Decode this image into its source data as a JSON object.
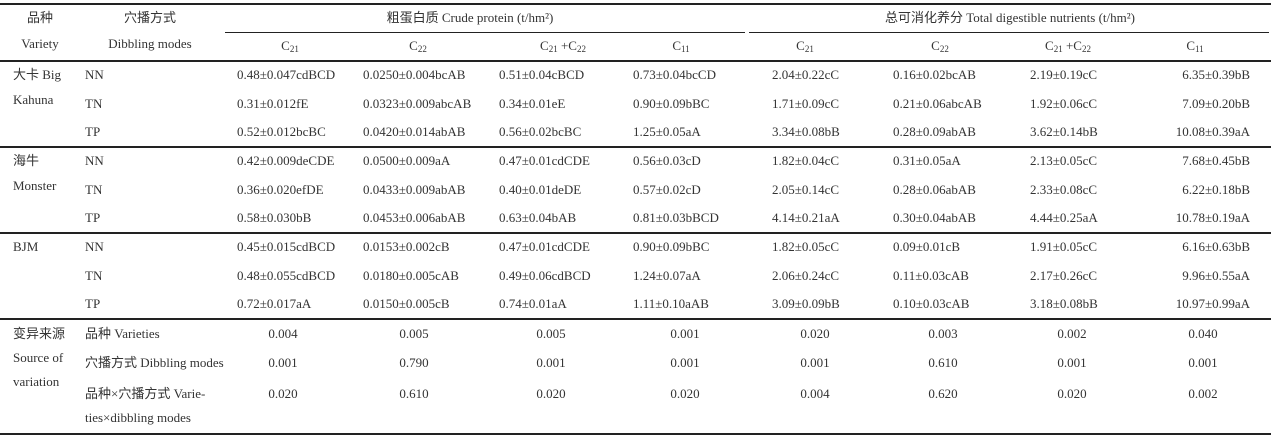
{
  "header": {
    "variety_cn": "品种",
    "variety_en": "Variety",
    "mode_cn": "穴播方式",
    "mode_en": "Dibbling modes",
    "crude_protein": "粗蛋白质 Crude protein (t/hm²)",
    "tdn": "总可消化养分 Total digestible nutrients (t/hm²)",
    "columns": [
      "C21",
      "C22",
      "C21+C22",
      "C11"
    ]
  },
  "groups": [
    {
      "variety": [
        "大卡 Big",
        "Kahuna"
      ],
      "rows": [
        {
          "mode": "NN",
          "cp": [
            "0.48±0.047cdBCD",
            "0.0250±0.004bcAB",
            "0.51±0.04cBCD",
            "0.73±0.04bcCD"
          ],
          "tdn": [
            "2.04±0.22cC",
            "0.16±0.02bcAB",
            "2.19±0.19cC",
            "6.35±0.39bB"
          ]
        },
        {
          "mode": "TN",
          "cp": [
            "0.31±0.012fE",
            "0.0323±0.009abcAB",
            "0.34±0.01eE",
            "0.90±0.09bBC"
          ],
          "tdn": [
            "1.71±0.09cC",
            "0.21±0.06abcAB",
            "1.92±0.06cC",
            "7.09±0.20bB"
          ]
        },
        {
          "mode": "TP",
          "cp": [
            "0.52±0.012bcBC",
            "0.0420±0.014abAB",
            "0.56±0.02bcBC",
            "1.25±0.05aA"
          ],
          "tdn": [
            "3.34±0.08bB",
            "0.28±0.09abAB",
            "3.62±0.14bB",
            "10.08±0.39aA"
          ]
        }
      ]
    },
    {
      "variety": [
        "海牛",
        "Monster"
      ],
      "rows": [
        {
          "mode": "NN",
          "cp": [
            "0.42±0.009deCDE",
            "0.0500±0.009aA",
            "0.47±0.01cdCDE",
            "0.56±0.03cD"
          ],
          "tdn": [
            "1.82±0.04cC",
            "0.31±0.05aA",
            "2.13±0.05cC",
            "7.68±0.45bB"
          ]
        },
        {
          "mode": "TN",
          "cp": [
            "0.36±0.020efDE",
            "0.0433±0.009abAB",
            "0.40±0.01deDE",
            "0.57±0.02cD"
          ],
          "tdn": [
            "2.05±0.14cC",
            "0.28±0.06abAB",
            "2.33±0.08cC",
            "6.22±0.18bB"
          ]
        },
        {
          "mode": "TP",
          "cp": [
            "0.58±0.030bB",
            "0.0453±0.006abAB",
            "0.63±0.04bAB",
            "0.81±0.03bBCD"
          ],
          "tdn": [
            "4.14±0.21aA",
            "0.30±0.04abAB",
            "4.44±0.25aA",
            "10.78±0.19aA"
          ]
        }
      ]
    },
    {
      "variety": [
        "BJM"
      ],
      "rows": [
        {
          "mode": "NN",
          "cp": [
            "0.45±0.015cdBCD",
            "0.0153±0.002cB",
            "0.47±0.01cdCDE",
            "0.90±0.09bBC"
          ],
          "tdn": [
            "1.82±0.05cC",
            "0.09±0.01cB",
            "1.91±0.05cC",
            "6.16±0.63bB"
          ]
        },
        {
          "mode": "TN",
          "cp": [
            "0.48±0.055cdBCD",
            "0.0180±0.005cAB",
            "0.49±0.06cdBCD",
            "1.24±0.07aA"
          ],
          "tdn": [
            "2.06±0.24cC",
            "0.11±0.03cAB",
            "2.17±0.26cC",
            "9.96±0.55aA"
          ]
        },
        {
          "mode": "TP",
          "cp": [
            "0.72±0.017aA",
            "0.0150±0.005cB",
            "0.74±0.01aA",
            "1.11±0.10aAB"
          ],
          "tdn": [
            "3.09±0.09bB",
            "0.10±0.03cAB",
            "3.18±0.08bB",
            "10.97±0.99aA"
          ]
        }
      ]
    }
  ],
  "anova": {
    "label": [
      "变异来源",
      "Source of",
      "variation"
    ],
    "rows": [
      {
        "source": [
          "品种 Varieties"
        ],
        "values": [
          "0.004",
          "0.005",
          "0.005",
          "0.001",
          "0.020",
          "0.003",
          "0.002",
          "0.040"
        ]
      },
      {
        "source": [
          "穴播方式 Dibbling modes"
        ],
        "values": [
          "0.001",
          "0.790",
          "0.001",
          "0.001",
          "0.001",
          "0.610",
          "0.001",
          "0.001"
        ]
      },
      {
        "source": [
          "品种×穴播方式 Varie-",
          "ties×dibbling modes"
        ],
        "values": [
          "0.020",
          "0.610",
          "0.020",
          "0.020",
          "0.004",
          "0.620",
          "0.020",
          "0.002"
        ]
      }
    ]
  }
}
